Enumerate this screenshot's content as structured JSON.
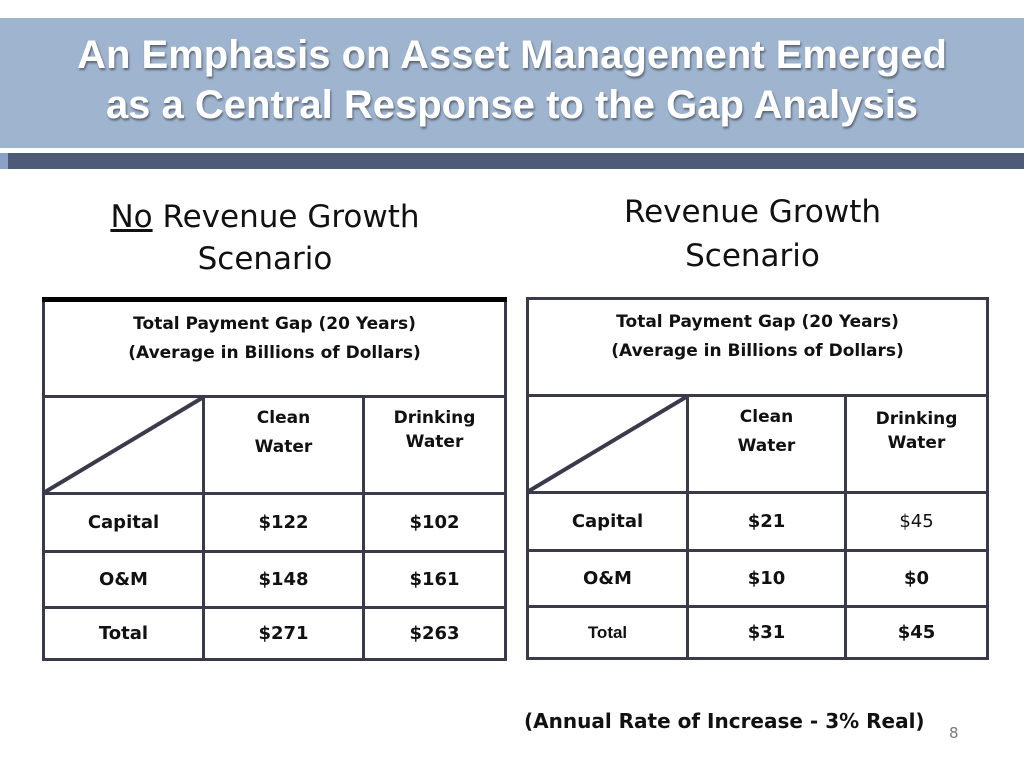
{
  "slide": {
    "title_line1": "An Emphasis on Asset Management Emerged",
    "title_line2": "as a Central Response to the Gap Analysis",
    "page_number": "8",
    "footnote": "(Annual Rate of Increase - 3% Real)"
  },
  "colors": {
    "title_band": "#9fb4cf",
    "rule": "#4d5a78",
    "table_border": "#3b3a4a"
  },
  "left_scenario": {
    "heading_underlined": "No",
    "heading_rest": " Revenue Growth",
    "heading_line2": "Scenario",
    "caption_line1": "Total Payment Gap (20 Years)",
    "caption_line2": "(Average in Billions of Dollars)",
    "col1_line1": "Clean",
    "col1_line2": "Water",
    "col2_line1": "Drinking",
    "col2_line2": "Water",
    "rows": [
      {
        "label": "Capital",
        "clean_water": "$122",
        "drinking_water": "$102"
      },
      {
        "label": "O&M",
        "clean_water": "$148",
        "drinking_water": "$161"
      },
      {
        "label": "Total",
        "clean_water": "$271",
        "drinking_water": "$263"
      }
    ]
  },
  "right_scenario": {
    "heading_line1": "Revenue Growth",
    "heading_line2": "Scenario",
    "caption_line1": "Total Payment Gap (20 Years)",
    "caption_line2": "(Average in Billions of Dollars)",
    "col1_line1": "Clean",
    "col1_line2": "Water",
    "col2_line1": "Drinking",
    "col2_line2": "Water",
    "rows": [
      {
        "label": "Capital",
        "clean_water": "$21",
        "drinking_water": "$45"
      },
      {
        "label": "O&M",
        "clean_water": "$10",
        "drinking_water": "$0"
      },
      {
        "label": "Total",
        "clean_water": "$31",
        "drinking_water": "$45"
      }
    ]
  }
}
